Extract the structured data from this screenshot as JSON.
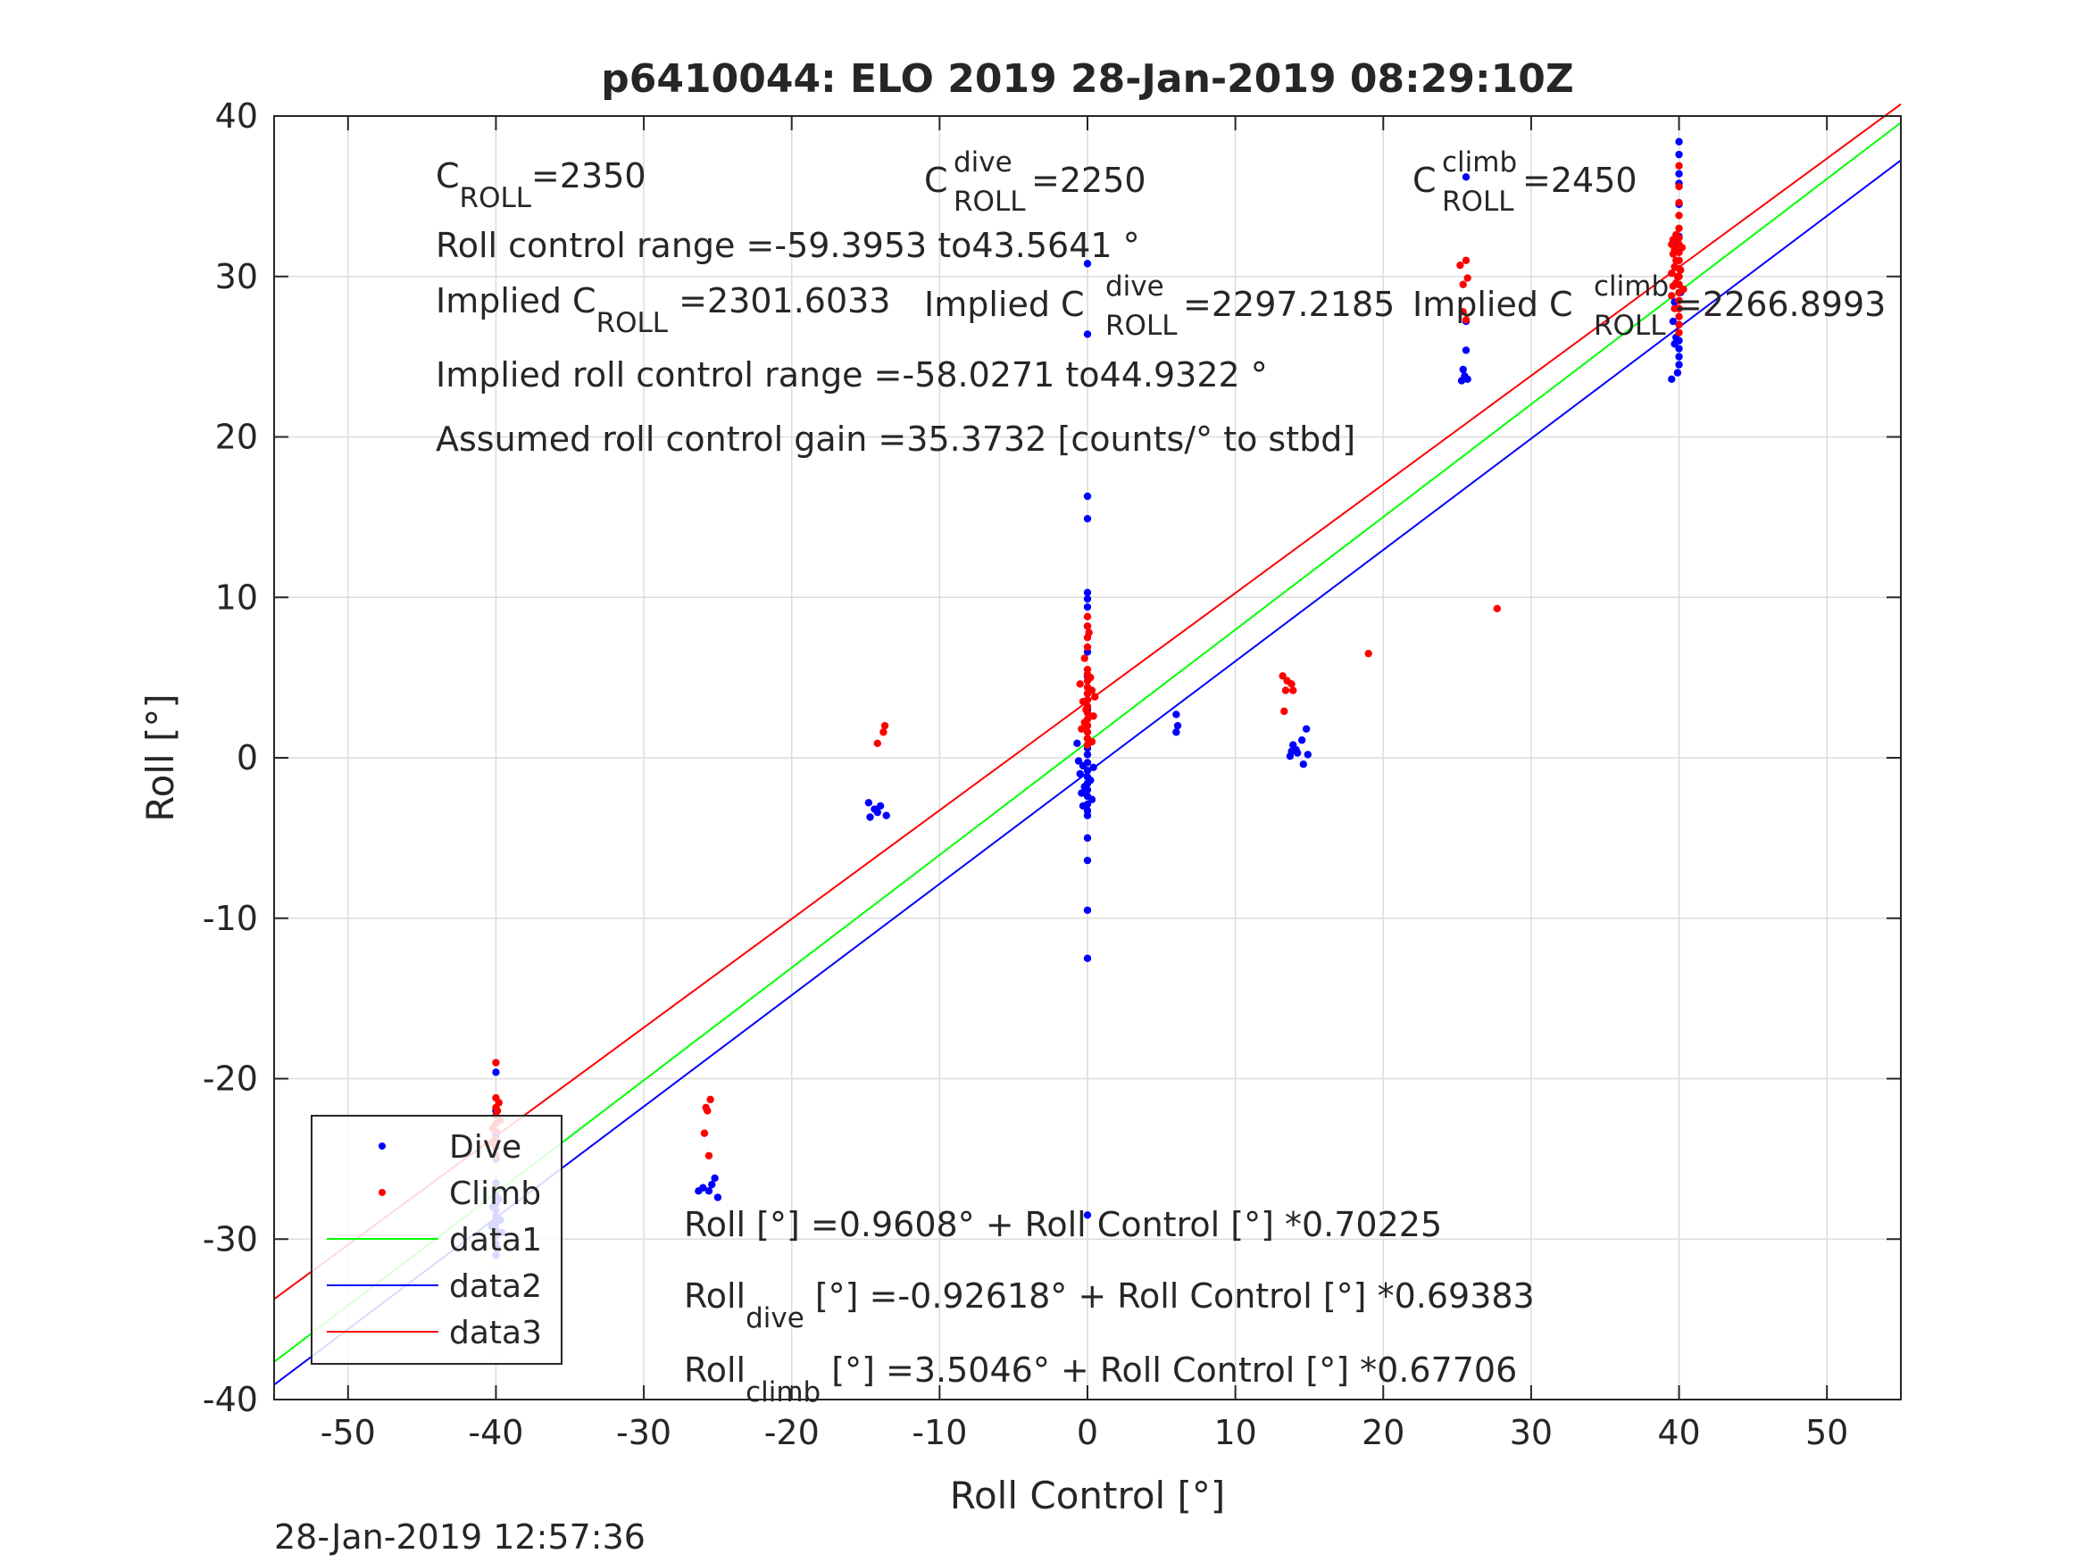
{
  "chart_data": {
    "type": "scatter",
    "title": "p6410044: ELO 2019 28-Jan-2019 08:29:10Z",
    "xlabel": "Roll Control [°]",
    "ylabel": "Roll [°]",
    "xlim": [
      -55,
      55
    ],
    "ylim": [
      -40,
      40
    ],
    "xticks": [
      "-50",
      "-40",
      "-30",
      "-20",
      "-10",
      "0",
      "10",
      "20",
      "30",
      "40",
      "50"
    ],
    "yticks": [
      "-40",
      "-30",
      "-20",
      "-10",
      "0",
      "10",
      "20",
      "30",
      "40"
    ],
    "grid": true,
    "legend_position": "bottom-left",
    "footer": "28-Jan-2019 12:57:36",
    "series": [
      {
        "name": "Dive",
        "kind": "scatter",
        "color": "#0000ff",
        "points": [
          [
            -40,
            -19.6
          ],
          [
            -40,
            -22
          ],
          [
            -40,
            -23.5
          ],
          [
            -40,
            -25
          ],
          [
            -40,
            -26.5
          ],
          [
            -40,
            -27.3
          ],
          [
            -40,
            -27.8
          ],
          [
            -40,
            -28.2
          ],
          [
            -40,
            -28.6
          ],
          [
            -40,
            -29
          ],
          [
            -40,
            -29.4
          ],
          [
            -40,
            -29.8
          ],
          [
            -40,
            -30.3
          ],
          [
            -40,
            -31
          ],
          [
            -39.8,
            -27.5
          ],
          [
            -39.7,
            -28.8
          ],
          [
            -39.6,
            -29.6
          ],
          [
            -40.2,
            -28
          ],
          [
            -40.3,
            -29.2
          ],
          [
            -39.9,
            -30.6
          ],
          [
            -26,
            -26.8
          ],
          [
            -25.6,
            -27
          ],
          [
            -25.2,
            -26.2
          ],
          [
            -25,
            -27.4
          ],
          [
            -25.4,
            -26.6
          ],
          [
            -26.3,
            -27
          ],
          [
            -14.8,
            -2.8
          ],
          [
            -14.4,
            -3.2
          ],
          [
            -14,
            -3
          ],
          [
            -13.6,
            -3.6
          ],
          [
            -14.7,
            -3.7
          ],
          [
            -14.2,
            -3.4
          ],
          [
            0,
            30.8
          ],
          [
            0,
            26.4
          ],
          [
            0,
            16.3
          ],
          [
            0,
            14.9
          ],
          [
            0,
            10.3
          ],
          [
            0,
            9.9
          ],
          [
            0,
            9.4
          ],
          [
            0,
            8.2
          ],
          [
            0,
            6.6
          ],
          [
            0,
            5.1
          ],
          [
            0,
            4
          ],
          [
            0,
            3
          ],
          [
            0,
            2
          ],
          [
            0,
            1.2
          ],
          [
            0,
            0.6
          ],
          [
            0,
            0.2
          ],
          [
            0,
            -0.3
          ],
          [
            0,
            -0.8
          ],
          [
            0,
            -1.2
          ],
          [
            0,
            -1.6
          ],
          [
            0,
            -2
          ],
          [
            0,
            -2.4
          ],
          [
            0,
            -2.9
          ],
          [
            0,
            -3.3
          ],
          [
            0,
            -3.6
          ],
          [
            0,
            -5
          ],
          [
            0,
            -6.4
          ],
          [
            0,
            -9.5
          ],
          [
            0,
            -12.5
          ],
          [
            0,
            -28.5
          ],
          [
            -0.3,
            -0.5
          ],
          [
            -0.5,
            -1
          ],
          [
            -0.2,
            -1.8
          ],
          [
            0.2,
            -1.4
          ],
          [
            0.3,
            -2.6
          ],
          [
            -0.4,
            -2.2
          ],
          [
            -0.6,
            -0.2
          ],
          [
            0.4,
            -0.6
          ],
          [
            -0.7,
            0.9
          ],
          [
            -0.3,
            -3
          ],
          [
            6,
            2.7
          ],
          [
            6.1,
            2
          ],
          [
            6,
            1.6
          ],
          [
            13.9,
            0.8
          ],
          [
            14.2,
            0.3
          ],
          [
            14.5,
            1.1
          ],
          [
            13.7,
            0.1
          ],
          [
            14.8,
            1.8
          ],
          [
            14.6,
            -0.4
          ],
          [
            14.1,
            0.5
          ],
          [
            14.9,
            0.2
          ],
          [
            13.8,
            0.4
          ],
          [
            25.6,
            36.2
          ],
          [
            25.6,
            27.2
          ],
          [
            25.4,
            24.2
          ],
          [
            25.5,
            23.8
          ],
          [
            25.3,
            23.5
          ],
          [
            25.7,
            23.6
          ],
          [
            25.6,
            25.4
          ],
          [
            40,
            38.4
          ],
          [
            40,
            37.6
          ],
          [
            40,
            36.4
          ],
          [
            40,
            35.8
          ],
          [
            40,
            34.5
          ],
          [
            40,
            32.5
          ],
          [
            40,
            31
          ],
          [
            40,
            29.5
          ],
          [
            40,
            28
          ],
          [
            40,
            27
          ],
          [
            40,
            26
          ],
          [
            40,
            25.5
          ],
          [
            40,
            25
          ],
          [
            40,
            24.5
          ],
          [
            39.8,
            26.2
          ],
          [
            39.6,
            27.2
          ],
          [
            39.7,
            25.8
          ],
          [
            39.5,
            23.6
          ],
          [
            39.9,
            24
          ],
          [
            40.1,
            29
          ],
          [
            39.7,
            28.4
          ],
          [
            39.8,
            32
          ]
        ]
      },
      {
        "name": "Climb",
        "kind": "scatter",
        "color": "#ff0000",
        "points": [
          [
            -40,
            -19
          ],
          [
            -40,
            -21.2
          ],
          [
            -40,
            -21.8
          ],
          [
            -40,
            -22.3
          ],
          [
            -40,
            -22.8
          ],
          [
            -40,
            -23.3
          ],
          [
            -40,
            -23.8
          ],
          [
            -40,
            -24.3
          ],
          [
            -40,
            -24.8
          ],
          [
            -39.8,
            -21.5
          ],
          [
            -39.7,
            -22.6
          ],
          [
            -40.2,
            -23.1
          ],
          [
            -40.3,
            -24
          ],
          [
            -39.9,
            -22
          ],
          [
            -25.8,
            -21.8
          ],
          [
            -25.5,
            -21.3
          ],
          [
            -25.7,
            -22
          ],
          [
            -25.9,
            -23.4
          ],
          [
            -25.6,
            -24.8
          ],
          [
            -14.2,
            0.9
          ],
          [
            -13.8,
            1.6
          ],
          [
            -13.7,
            2
          ],
          [
            0,
            8.8
          ],
          [
            0,
            8.2
          ],
          [
            0,
            7.5
          ],
          [
            0,
            6.9
          ],
          [
            0,
            5.5
          ],
          [
            0,
            5.2
          ],
          [
            0,
            4.8
          ],
          [
            0,
            4.4
          ],
          [
            0,
            4
          ],
          [
            0,
            3.6
          ],
          [
            0,
            3.2
          ],
          [
            0,
            2.8
          ],
          [
            0,
            2.4
          ],
          [
            0,
            2
          ],
          [
            0,
            1.6
          ],
          [
            0,
            1.2
          ],
          [
            0,
            0.8
          ],
          [
            0.3,
            4.2
          ],
          [
            -0.3,
            3.5
          ],
          [
            0.4,
            2.6
          ],
          [
            -0.4,
            1.8
          ],
          [
            0.2,
            5
          ],
          [
            -0.2,
            2.2
          ],
          [
            0.5,
            3.8
          ],
          [
            -0.5,
            4.6
          ],
          [
            0.3,
            1
          ],
          [
            -0.2,
            6.2
          ],
          [
            0.1,
            7.8
          ],
          [
            -0.1,
            3
          ],
          [
            13.2,
            5.1
          ],
          [
            13.5,
            4.8
          ],
          [
            13.8,
            4.6
          ],
          [
            13.9,
            4.2
          ],
          [
            13.4,
            4.2
          ],
          [
            13.3,
            2.9
          ],
          [
            19,
            6.5
          ],
          [
            25.2,
            30.7
          ],
          [
            25.6,
            31
          ],
          [
            25.4,
            29.5
          ],
          [
            25.7,
            29.9
          ],
          [
            25.4,
            27.8
          ],
          [
            25.6,
            27.3
          ],
          [
            27.7,
            9.3
          ],
          [
            40,
            36.9
          ],
          [
            40,
            35.6
          ],
          [
            40,
            34.6
          ],
          [
            40,
            33.8
          ],
          [
            40,
            33
          ],
          [
            40,
            32.4
          ],
          [
            40,
            32
          ],
          [
            40,
            31.5
          ],
          [
            40,
            31
          ],
          [
            40,
            30.5
          ],
          [
            40,
            30
          ],
          [
            40,
            29.5
          ],
          [
            40,
            29
          ],
          [
            40,
            28.5
          ],
          [
            40,
            28
          ],
          [
            40,
            27.5
          ],
          [
            40,
            27
          ],
          [
            40,
            26.5
          ],
          [
            39.5,
            32
          ],
          [
            39.6,
            31.4
          ],
          [
            39.7,
            30.6
          ],
          [
            39.5,
            30.2
          ],
          [
            39.8,
            29.6
          ],
          [
            39.6,
            32.3
          ],
          [
            39.7,
            31.7
          ],
          [
            39.8,
            31
          ],
          [
            39.9,
            30
          ],
          [
            40.1,
            30.4
          ],
          [
            40.2,
            31.8
          ],
          [
            40.3,
            29.2
          ],
          [
            39.5,
            28.8
          ],
          [
            39.6,
            29.4
          ],
          [
            39.8,
            32.6
          ],
          [
            39.7,
            28
          ]
        ]
      },
      {
        "name": "data1",
        "kind": "line",
        "color": "#00ff00",
        "intercept": 0.9608,
        "slope": 0.70225,
        "points": [
          [
            -55,
            -37.66
          ],
          [
            55,
            39.59
          ]
        ]
      },
      {
        "name": "data2",
        "kind": "line",
        "color": "#0000ff",
        "intercept": -0.92618,
        "slope": 0.69383,
        "points": [
          [
            -55,
            -39.08
          ],
          [
            55,
            37.24
          ]
        ]
      },
      {
        "name": "data3",
        "kind": "line",
        "color": "#ff0000",
        "intercept": 3.5046,
        "slope": 0.67706,
        "points": [
          [
            -55,
            -33.74
          ],
          [
            55,
            40.74
          ]
        ]
      }
    ],
    "annotations": {
      "c_roll": {
        "base": "C",
        "sub": "ROLL",
        "sup": "",
        "tail": "=2350"
      },
      "c_roll_dive": {
        "base": "C",
        "sub": "ROLL",
        "sup": "dive",
        "tail": " =2250"
      },
      "c_roll_climb": {
        "base": "C",
        "sub": "ROLL",
        "sup": "climb",
        "tail": " =2450"
      },
      "roll_control_range": "Roll control range =-59.3953 to43.5641 °",
      "implied_c_roll": {
        "base": "Implied C",
        "sub": "ROLL",
        "sup": "",
        "tail": " =2301.6033"
      },
      "implied_c_roll_dive": {
        "base": "Implied C",
        "sub": "ROLL",
        "sup": "dive",
        "tail": " =2297.2185"
      },
      "implied_c_roll_climb": {
        "base": "Implied C",
        "sub": "ROLL",
        "sup": "climb",
        "tail": " =2266.8993"
      },
      "implied_range": "Implied roll control range =-58.0271 to44.9322 °",
      "assumed_gain": "Assumed roll control gain =35.3732 [counts/° to stbd]",
      "fit_all": {
        "base": "Roll",
        "sub": "",
        "tail": " [°] =0.9608° + Roll Control [°] *0.70225"
      },
      "fit_dive": {
        "base": "Roll",
        "sub": "dive",
        "tail": " [°] =-0.92618° + Roll Control [°] *0.69383"
      },
      "fit_climb": {
        "base": "Roll",
        "sub": "climb",
        "tail": " [°] =3.5046° + Roll Control [°] *0.67706"
      }
    }
  }
}
